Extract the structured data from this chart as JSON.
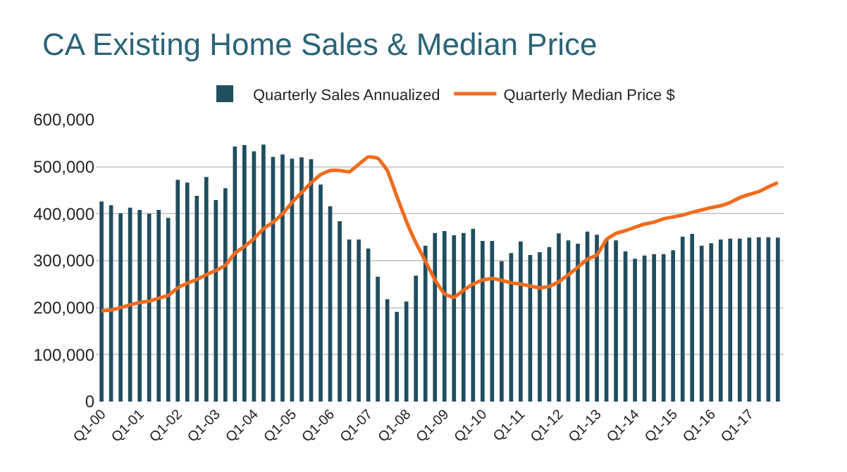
{
  "chart_data": {
    "type": "bar",
    "title": "CA Existing Home Sales & Median Price",
    "categories": [
      "Q1-00",
      null,
      null,
      null,
      "Q1-01",
      null,
      null,
      null,
      "Q1-02",
      null,
      null,
      null,
      "Q1-03",
      null,
      null,
      null,
      "Q1-04",
      null,
      null,
      null,
      "Q1-05",
      null,
      null,
      null,
      "Q1-06",
      null,
      null,
      null,
      "Q1-07",
      null,
      null,
      null,
      "Q1-08",
      null,
      null,
      null,
      "Q1-09",
      null,
      null,
      null,
      "Q1-10",
      null,
      null,
      null,
      "Q1-11",
      null,
      null,
      null,
      "Q1-12",
      null,
      null,
      null,
      "Q1-13",
      null,
      null,
      null,
      "Q1-14",
      null,
      null,
      null,
      "Q1-15",
      null,
      null,
      null,
      "Q1-16",
      null,
      null,
      null,
      "Q1-17",
      null,
      null,
      null
    ],
    "series": [
      {
        "name": "Quarterly Sales Annualized",
        "color": "#1f4e5f",
        "values": [
          426000,
          418000,
          401000,
          413000,
          408000,
          400000,
          408000,
          391000,
          472000,
          466000,
          438000,
          478000,
          429000,
          454000,
          543000,
          546000,
          533000,
          547000,
          521000,
          526000,
          517000,
          520000,
          516000,
          462000,
          416000,
          384000,
          345000,
          345000,
          326000,
          266000,
          218000,
          191000,
          213000,
          268000,
          332000,
          359000,
          363000,
          354000,
          359000,
          368000,
          342000,
          342000,
          299000,
          316000,
          341000,
          312000,
          318000,
          329000,
          358000,
          343000,
          336000,
          362000,
          355000,
          345000,
          343000,
          320000,
          304000,
          311000,
          314000,
          314000,
          322000,
          351000,
          357000,
          332000,
          337000,
          345000,
          347000,
          347000,
          349000,
          350000,
          350000,
          349000
        ]
      },
      {
        "name": "Quarterly Median Price $",
        "type": "line",
        "color": "#f26b1d",
        "values": [
          193000,
          195000,
          200000,
          206000,
          211000,
          214000,
          220000,
          226000,
          242000,
          252000,
          260000,
          270000,
          279000,
          290000,
          316000,
          330000,
          347000,
          368000,
          382000,
          400000,
          424000,
          445000,
          466000,
          483000,
          492000,
          492000,
          489000,
          505000,
          521000,
          518000,
          492000,
          437000,
          384000,
          338000,
          299000,
          259000,
          229000,
          222000,
          237000,
          250000,
          259000,
          262000,
          258000,
          253000,
          250000,
          246000,
          242000,
          245000,
          255000,
          270000,
          286000,
          303000,
          312000,
          345000,
          358000,
          364000,
          371000,
          378000,
          382000,
          389000,
          393000,
          397000,
          403000,
          408000,
          413000,
          417000,
          424000,
          434000,
          441000,
          447000,
          457000,
          466000
        ]
      }
    ],
    "ylim": [
      0,
      600000
    ],
    "yticks": [
      {
        "value": 0,
        "label": "0"
      },
      {
        "value": 100000,
        "label": "100,000"
      },
      {
        "value": 200000,
        "label": "200,000"
      },
      {
        "value": 300000,
        "label": "300,000"
      },
      {
        "value": 400000,
        "label": "400,000"
      },
      {
        "value": 500000,
        "label": "500,000"
      },
      {
        "value": 600000,
        "label": "600,000"
      }
    ],
    "grid": "y",
    "legend": "top",
    "marker": "none",
    "line_style": "solid"
  }
}
